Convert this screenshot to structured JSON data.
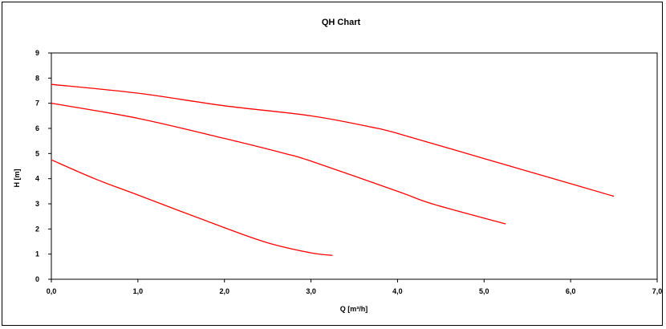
{
  "chart_data": {
    "type": "line",
    "title": "QH Chart",
    "xlabel": "Q [m³/h]",
    "ylabel": "H [m]",
    "xlim": [
      0,
      7
    ],
    "ylim": [
      0,
      9
    ],
    "x_ticks": [
      "0,0",
      "1,0",
      "2,0",
      "3,0",
      "4,0",
      "5,0",
      "6,0",
      "7,0"
    ],
    "y_ticks": [
      "0",
      "1",
      "2",
      "3",
      "4",
      "5",
      "6",
      "7",
      "8",
      "9"
    ],
    "grid": true,
    "colors": {
      "series": "#ff0000",
      "grid": "#000000",
      "background": "#ffffff"
    },
    "series": [
      {
        "x": [
          0.0,
          1.0,
          2.0,
          3.0,
          3.7,
          4.0,
          5.0,
          6.0,
          6.5
        ],
        "y": [
          7.75,
          7.4,
          6.9,
          6.5,
          6.05,
          5.8,
          4.8,
          3.8,
          3.3
        ]
      },
      {
        "x": [
          0.0,
          1.0,
          2.0,
          2.7,
          3.0,
          4.0,
          4.4,
          5.25
        ],
        "y": [
          7.0,
          6.4,
          5.6,
          5.0,
          4.7,
          3.5,
          3.0,
          2.2
        ]
      },
      {
        "x": [
          0.0,
          0.5,
          1.0,
          2.0,
          2.5,
          3.0,
          3.25
        ],
        "y": [
          4.75,
          4.0,
          3.35,
          2.05,
          1.45,
          1.05,
          0.95
        ]
      }
    ]
  }
}
